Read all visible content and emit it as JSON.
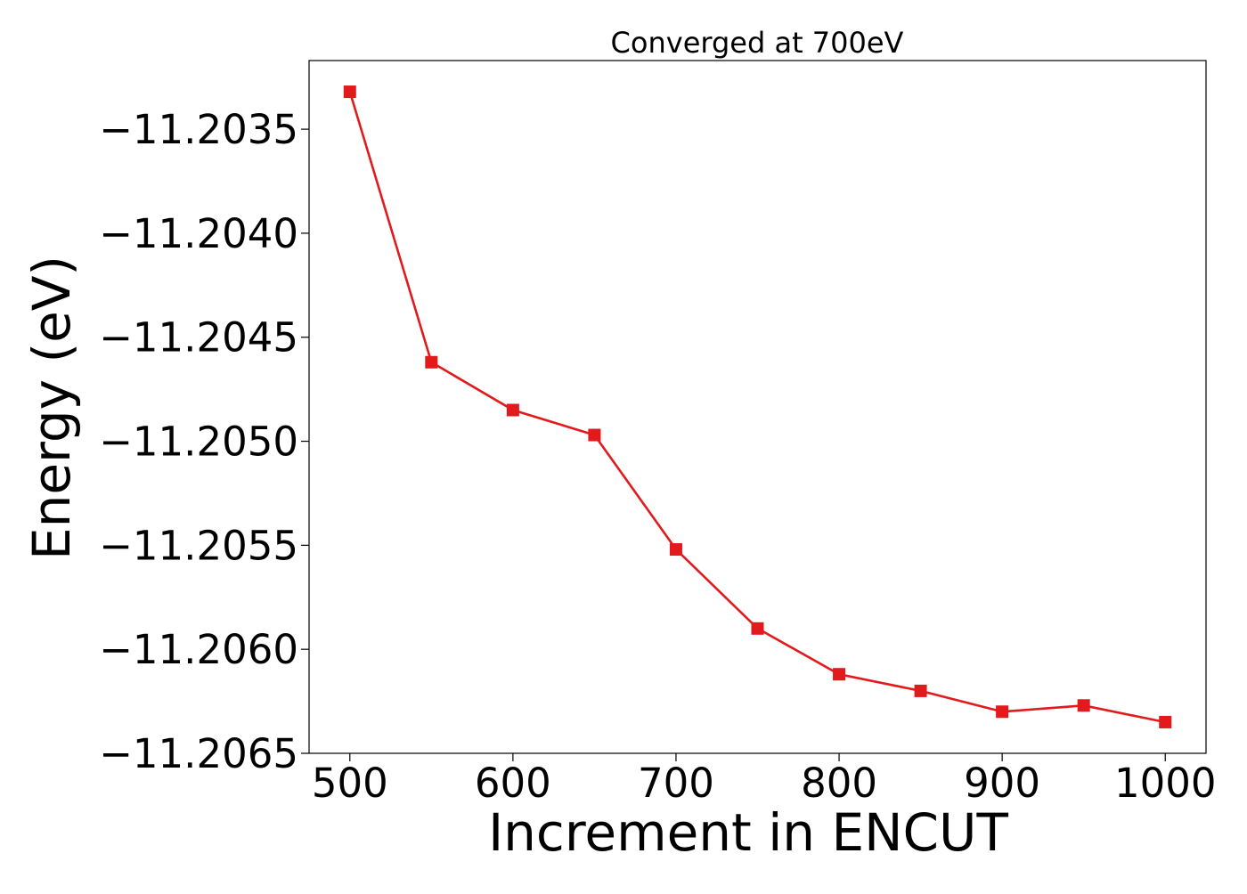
{
  "chart_data": {
    "type": "line",
    "title": "Converged at 700eV",
    "xlabel": "Increment in ENCUT",
    "ylabel": "Energy (eV)",
    "x": [
      500,
      550,
      600,
      650,
      700,
      750,
      800,
      850,
      900,
      950,
      1000
    ],
    "series": [
      {
        "values": [
          -11.20332,
          -11.20462,
          -11.20485,
          -11.20497,
          -11.20552,
          -11.2059,
          -11.20612,
          -11.2062,
          -11.2063,
          -11.20627,
          -11.20635
        ]
      }
    ],
    "xlim": [
      475,
      1025
    ],
    "ylim": [
      -11.2065,
      -11.20317
    ],
    "xticks": [
      500,
      600,
      700,
      800,
      900,
      1000
    ],
    "xtick_labels": [
      "500",
      "600",
      "700",
      "800",
      "900",
      "1000"
    ],
    "yticks": [
      -11.2035,
      -11.204,
      -11.2045,
      -11.205,
      -11.2055,
      -11.206,
      -11.2065
    ],
    "ytick_labels": [
      "−11.2035",
      "−11.2040",
      "−11.2045",
      "−11.2050",
      "−11.2055",
      "−11.2060",
      "−11.2065"
    ],
    "marker": "square",
    "line_color": "#e31a1c",
    "grid": false,
    "legend": "none"
  }
}
